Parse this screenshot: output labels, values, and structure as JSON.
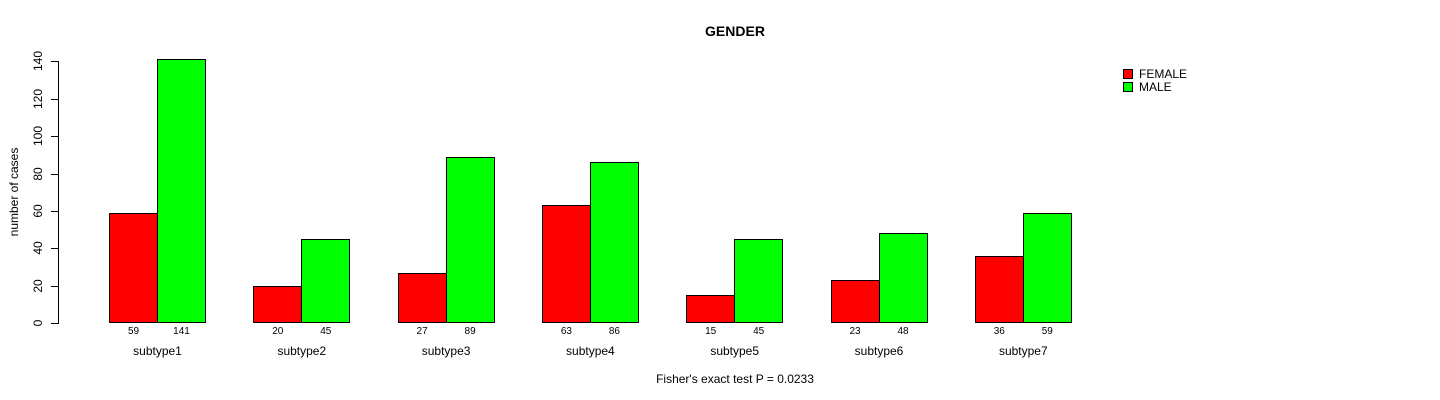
{
  "chart_data": {
    "type": "bar",
    "title": "GENDER",
    "xlabel": "",
    "ylabel": "number of cases",
    "footnote": "Fisher's exact test P = 0.0233",
    "categories": [
      "subtype1",
      "subtype2",
      "subtype3",
      "subtype4",
      "subtype5",
      "subtype6",
      "subtype7"
    ],
    "series": [
      {
        "name": "FEMALE",
        "color": "#ff0000",
        "values": [
          59,
          20,
          27,
          63,
          15,
          23,
          36
        ]
      },
      {
        "name": "MALE",
        "color": "#00ff00",
        "values": [
          141,
          45,
          89,
          86,
          45,
          48,
          59
        ]
      }
    ],
    "yticks": [
      0,
      20,
      40,
      60,
      80,
      100,
      120,
      140
    ],
    "ylim": [
      0,
      140
    ],
    "grid": false,
    "legend_position": "top-right",
    "bar_value_labels_shown": true,
    "bar_border_color": "#000000",
    "axis_color": "#000000"
  }
}
